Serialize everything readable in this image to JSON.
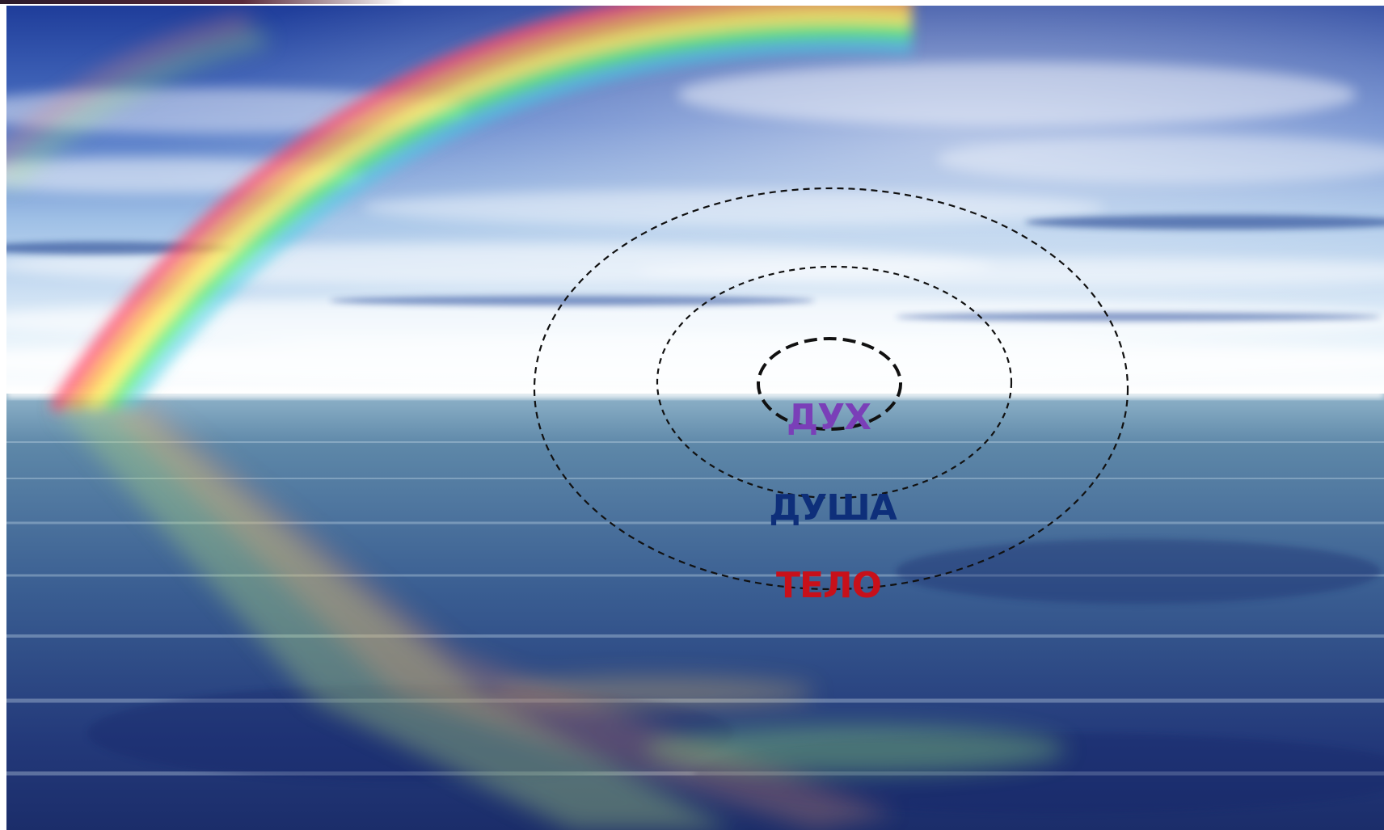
{
  "diagram": {
    "labels": {
      "inner": "ДУХ",
      "middle": "ДУША",
      "outer": "ТЕЛО"
    },
    "colors": {
      "inner_label": "#7a3fb8",
      "middle_label": "#0e2f7a",
      "outer_label": "#c8101a",
      "ellipse_stroke": "#111111"
    }
  },
  "background": {
    "scene": "sky-sea-rainbow",
    "sky_color": "#2f4fa8",
    "sea_color": "#2c4f86"
  }
}
